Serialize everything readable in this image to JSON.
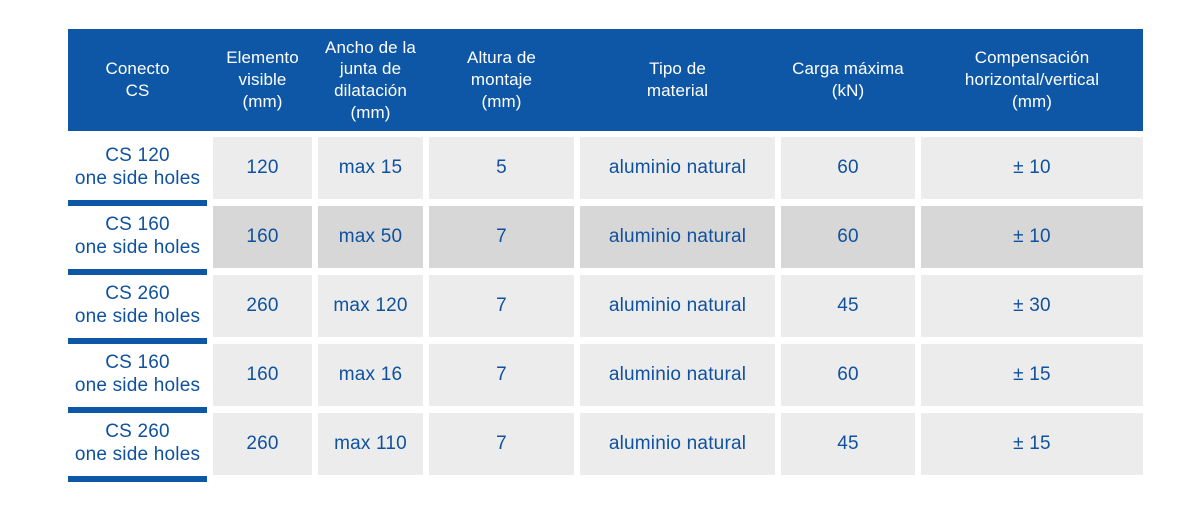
{
  "colors": {
    "brand_blue": "#0e57a6",
    "text_blue": "#0f519e",
    "cell_gray_light": "#ececec",
    "cell_gray_dark": "#d7d7d7",
    "header_text": "#ffffff",
    "page_background": "#ffffff"
  },
  "table": {
    "columns": [
      {
        "label": "Conecto\nCS"
      },
      {
        "label": "Elemento\nvisible\n(mm)"
      },
      {
        "label": "Ancho de la\njunta de\ndilatación\n(mm)"
      },
      {
        "label": "Altura de\nmontaje\n(mm)"
      },
      {
        "label": "Tipo de\nmaterial"
      },
      {
        "label": "Carga máxima\n(kN)"
      },
      {
        "label": "Compensación\nhorizontal/vertical\n(mm)"
      }
    ],
    "rows": [
      {
        "model": "CS 120",
        "variant": "one side holes",
        "highlighted": false,
        "values": [
          "120",
          "max 15",
          "5",
          "aluminio natural",
          "60",
          "± 10"
        ]
      },
      {
        "model": "CS 160",
        "variant": "one side holes",
        "highlighted": true,
        "values": [
          "160",
          "max 50",
          "7",
          "aluminio natural",
          "60",
          "± 10"
        ]
      },
      {
        "model": "CS 260",
        "variant": "one side holes",
        "highlighted": false,
        "values": [
          "260",
          "max 120",
          "7",
          "aluminio natural",
          "45",
          "± 30"
        ]
      },
      {
        "model": "CS 160",
        "variant": "one side holes",
        "highlighted": false,
        "values": [
          "160",
          "max 16",
          "7",
          "aluminio natural",
          "60",
          "± 15"
        ]
      },
      {
        "model": "CS 260",
        "variant": "one side holes",
        "highlighted": false,
        "values": [
          "260",
          "max 110",
          "7",
          "aluminio natural",
          "45",
          "± 15"
        ]
      }
    ]
  }
}
